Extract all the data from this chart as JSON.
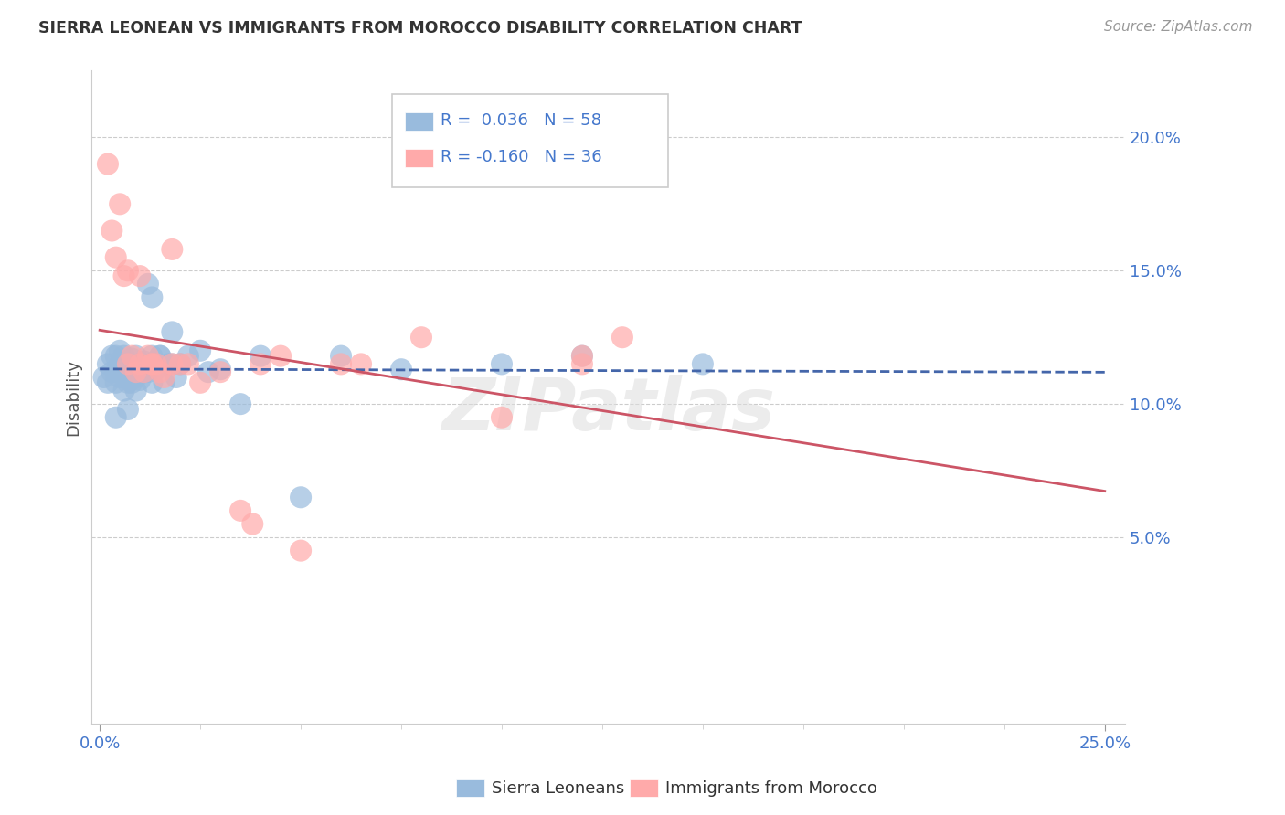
{
  "title": "SIERRA LEONEAN VS IMMIGRANTS FROM MOROCCO DISABILITY CORRELATION CHART",
  "source": "Source: ZipAtlas.com",
  "ylabel": "Disability",
  "x_ticks": [
    0.0,
    0.25
  ],
  "x_tick_labels": [
    "0.0%",
    "25.0%"
  ],
  "x_minor_ticks": [
    0.025,
    0.05,
    0.075,
    0.1,
    0.125,
    0.15,
    0.175,
    0.2,
    0.225
  ],
  "y_ticks": [
    0.05,
    0.1,
    0.15,
    0.2
  ],
  "y_tick_labels": [
    "5.0%",
    "10.0%",
    "15.0%",
    "20.0%"
  ],
  "xlim": [
    -0.002,
    0.255
  ],
  "ylim": [
    -0.02,
    0.225
  ],
  "blue_color": "#99BBDD",
  "pink_color": "#FFAAAA",
  "blue_line_color": "#4466AA",
  "pink_line_color": "#CC5566",
  "legend_r_blue": "0.036",
  "legend_n_blue": "58",
  "legend_r_pink": "-0.160",
  "legend_n_pink": "36",
  "legend_label_blue": "Sierra Leoneans",
  "legend_label_pink": "Immigrants from Morocco",
  "watermark": "ZIPatlas",
  "blue_x": [
    0.001,
    0.002,
    0.002,
    0.003,
    0.003,
    0.004,
    0.004,
    0.004,
    0.005,
    0.005,
    0.005,
    0.006,
    0.006,
    0.006,
    0.007,
    0.007,
    0.007,
    0.008,
    0.008,
    0.008,
    0.009,
    0.009,
    0.009,
    0.01,
    0.01,
    0.01,
    0.011,
    0.011,
    0.012,
    0.012,
    0.013,
    0.013,
    0.014,
    0.015,
    0.016,
    0.017,
    0.018,
    0.019,
    0.02,
    0.022,
    0.025,
    0.027,
    0.03,
    0.035,
    0.04,
    0.05,
    0.06,
    0.075,
    0.1,
    0.12,
    0.15,
    0.004,
    0.007,
    0.009,
    0.011,
    0.013,
    0.015,
    0.018
  ],
  "blue_y": [
    0.11,
    0.115,
    0.108,
    0.112,
    0.118,
    0.108,
    0.112,
    0.118,
    0.11,
    0.115,
    0.12,
    0.105,
    0.112,
    0.118,
    0.113,
    0.108,
    0.115,
    0.112,
    0.117,
    0.108,
    0.113,
    0.118,
    0.11,
    0.112,
    0.115,
    0.109,
    0.116,
    0.112,
    0.145,
    0.112,
    0.118,
    0.14,
    0.113,
    0.118,
    0.108,
    0.115,
    0.127,
    0.11,
    0.115,
    0.118,
    0.12,
    0.112,
    0.113,
    0.1,
    0.118,
    0.065,
    0.118,
    0.113,
    0.115,
    0.118,
    0.115,
    0.095,
    0.098,
    0.105,
    0.112,
    0.108,
    0.118,
    0.115
  ],
  "pink_x": [
    0.002,
    0.003,
    0.004,
    0.005,
    0.006,
    0.007,
    0.007,
    0.008,
    0.009,
    0.01,
    0.01,
    0.011,
    0.012,
    0.013,
    0.014,
    0.015,
    0.016,
    0.018,
    0.02,
    0.022,
    0.025,
    0.03,
    0.035,
    0.038,
    0.04,
    0.045,
    0.05,
    0.06,
    0.065,
    0.08,
    0.1,
    0.12,
    0.013,
    0.018,
    0.12,
    0.13
  ],
  "pink_y": [
    0.19,
    0.165,
    0.155,
    0.175,
    0.148,
    0.15,
    0.115,
    0.118,
    0.112,
    0.115,
    0.148,
    0.112,
    0.118,
    0.115,
    0.115,
    0.112,
    0.11,
    0.115,
    0.115,
    0.115,
    0.108,
    0.112,
    0.06,
    0.055,
    0.115,
    0.118,
    0.045,
    0.115,
    0.115,
    0.125,
    0.095,
    0.118,
    0.115,
    0.158,
    0.115,
    0.125
  ],
  "grid_color": "#CCCCCC",
  "background_color": "#FFFFFF"
}
